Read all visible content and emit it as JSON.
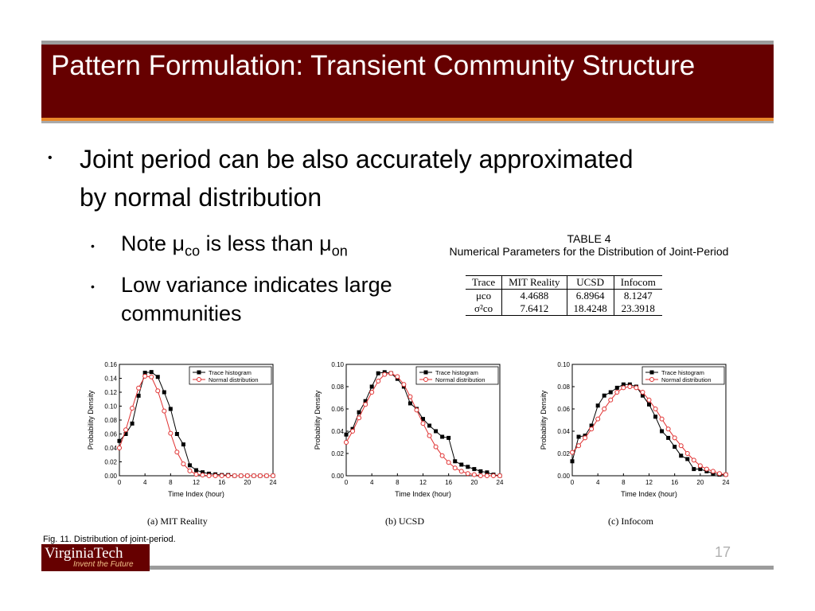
{
  "slide": {
    "title": "Pattern Formulation: Transient Community Structure",
    "bullet_main": "Joint period can be also accurately approximated by normal distribution",
    "sub1_prefix": "Note μ",
    "sub1_s1": "co",
    "sub1_mid": " is less than μ",
    "sub1_s2": "on",
    "sub2": "Low variance indicates large communities",
    "bullet_glyph": "•",
    "page_number": "17"
  },
  "table": {
    "caption1": "TABLE 4",
    "caption2": "Numerical Parameters for the Distribution of Joint-Period",
    "headers": [
      "Trace",
      "MIT Reality",
      "UCSD",
      "Infocom"
    ],
    "rows": [
      {
        "label": "μco",
        "values": [
          "4.4688",
          "6.8964",
          "8.1247"
        ]
      },
      {
        "label": "σ²co",
        "values": [
          "7.6412",
          "18.4248",
          "23.3918"
        ]
      }
    ]
  },
  "figure": {
    "caption": "Fig. 11. Distribution of joint-period.",
    "subcaptions": [
      "(a) MIT Reality",
      "(b) UCSD",
      "(c) Infocom"
    ]
  },
  "logo": {
    "name": "VirginiaTech",
    "slogan": "Invent the Future"
  },
  "chart_data": [
    {
      "type": "line",
      "xlabel": "Time Index (hour)",
      "ylabel": "Probability Density",
      "xlim": [
        0,
        24
      ],
      "ylim": [
        0,
        0.16
      ],
      "xticks": [
        0,
        4,
        8,
        12,
        16,
        20,
        24
      ],
      "yticks": [
        "0.00",
        "0.02",
        "0.04",
        "0.06",
        "0.08",
        "0.10",
        "0.12",
        "0.14",
        "0.16"
      ],
      "legend": "top-right",
      "series": [
        {
          "name": "Trace histogram",
          "color": "#000000",
          "marker": "square",
          "x": [
            0,
            1,
            2,
            3,
            4,
            5,
            6,
            7,
            8,
            9,
            10,
            11,
            12,
            13,
            14,
            15,
            16,
            17,
            18,
            19,
            20,
            21,
            22,
            23,
            24
          ],
          "values": [
            0.05,
            0.06,
            0.075,
            0.115,
            0.148,
            0.149,
            0.142,
            0.12,
            0.096,
            0.06,
            0.045,
            0.015,
            0.008,
            0.005,
            0.003,
            0.002,
            0.001,
            0.001,
            0,
            0,
            0,
            0,
            0,
            0,
            0
          ]
        },
        {
          "name": "Normal distribution",
          "color": "#e03030",
          "marker": "circle",
          "x": [
            0,
            1,
            2,
            3,
            4,
            5,
            6,
            7,
            8,
            9,
            10,
            11,
            12,
            13,
            14,
            15,
            16,
            17,
            18,
            19,
            20,
            21,
            22,
            23,
            24
          ],
          "values": [
            0.04,
            0.066,
            0.097,
            0.126,
            0.143,
            0.142,
            0.122,
            0.093,
            0.061,
            0.034,
            0.017,
            0.007,
            0.002,
            0.001,
            0,
            0,
            0,
            0,
            0,
            0,
            0,
            0,
            0,
            0,
            0
          ]
        }
      ]
    },
    {
      "type": "line",
      "xlabel": "Time Index (hour)",
      "ylabel": "Probability Density",
      "xlim": [
        0,
        24
      ],
      "ylim": [
        0,
        0.1
      ],
      "xticks": [
        0,
        4,
        8,
        12,
        16,
        20,
        24
      ],
      "yticks": [
        "0.00",
        "0.02",
        "0.04",
        "0.06",
        "0.08",
        "0.10"
      ],
      "legend": "top-right",
      "series": [
        {
          "name": "Trace histogram",
          "color": "#000000",
          "marker": "square",
          "x": [
            0,
            1,
            2,
            3,
            4,
            5,
            6,
            7,
            8,
            9,
            10,
            11,
            12,
            13,
            14,
            15,
            16,
            17,
            18,
            19,
            20,
            21,
            22,
            23,
            24
          ],
          "values": [
            0.037,
            0.042,
            0.057,
            0.067,
            0.08,
            0.092,
            0.093,
            0.092,
            0.087,
            0.08,
            0.065,
            0.06,
            0.051,
            0.045,
            0.04,
            0.035,
            0.034,
            0.013,
            0.01,
            0.008,
            0.006,
            0.004,
            0.003,
            0.001,
            0
          ]
        },
        {
          "name": "Normal distribution",
          "color": "#e03030",
          "marker": "circle",
          "x": [
            0,
            1,
            2,
            3,
            4,
            5,
            6,
            7,
            8,
            9,
            10,
            11,
            12,
            13,
            14,
            15,
            16,
            17,
            18,
            19,
            20,
            21,
            22,
            23,
            24
          ],
          "values": [
            0.03,
            0.04,
            0.052,
            0.064,
            0.075,
            0.085,
            0.091,
            0.092,
            0.089,
            0.082,
            0.071,
            0.059,
            0.047,
            0.036,
            0.026,
            0.018,
            0.012,
            0.007,
            0.004,
            0.002,
            0.001,
            0,
            0,
            0,
            0
          ]
        }
      ]
    },
    {
      "type": "line",
      "xlabel": "Time Index (hour)",
      "ylabel": "Probability Density",
      "xlim": [
        0,
        24
      ],
      "ylim": [
        0,
        0.1
      ],
      "xticks": [
        0,
        4,
        8,
        12,
        16,
        20,
        24
      ],
      "yticks": [
        "0.00",
        "0.02",
        "0.04",
        "0.06",
        "0.08",
        "0.10"
      ],
      "legend": "top-right",
      "series": [
        {
          "name": "Trace histogram",
          "color": "#000000",
          "marker": "square",
          "x": [
            0,
            1,
            2,
            3,
            4,
            5,
            6,
            7,
            8,
            9,
            10,
            11,
            12,
            13,
            14,
            15,
            16,
            17,
            18,
            19,
            20,
            21,
            22,
            23,
            24
          ],
          "values": [
            0.013,
            0.035,
            0.036,
            0.045,
            0.063,
            0.072,
            0.075,
            0.079,
            0.082,
            0.082,
            0.08,
            0.072,
            0.064,
            0.053,
            0.04,
            0.034,
            0.026,
            0.018,
            0.015,
            0.006,
            0.006,
            0.004,
            0.002,
            0.001,
            0.001
          ]
        },
        {
          "name": "Normal distribution",
          "color": "#e03030",
          "marker": "circle",
          "x": [
            0,
            1,
            2,
            3,
            4,
            5,
            6,
            7,
            8,
            9,
            10,
            11,
            12,
            13,
            14,
            15,
            16,
            17,
            18,
            19,
            20,
            21,
            22,
            23,
            24
          ],
          "values": [
            0.021,
            0.027,
            0.034,
            0.042,
            0.051,
            0.06,
            0.068,
            0.075,
            0.079,
            0.08,
            0.079,
            0.075,
            0.068,
            0.06,
            0.051,
            0.042,
            0.034,
            0.027,
            0.02,
            0.014,
            0.009,
            0.006,
            0.004,
            0.002,
            0.001
          ]
        }
      ]
    }
  ]
}
